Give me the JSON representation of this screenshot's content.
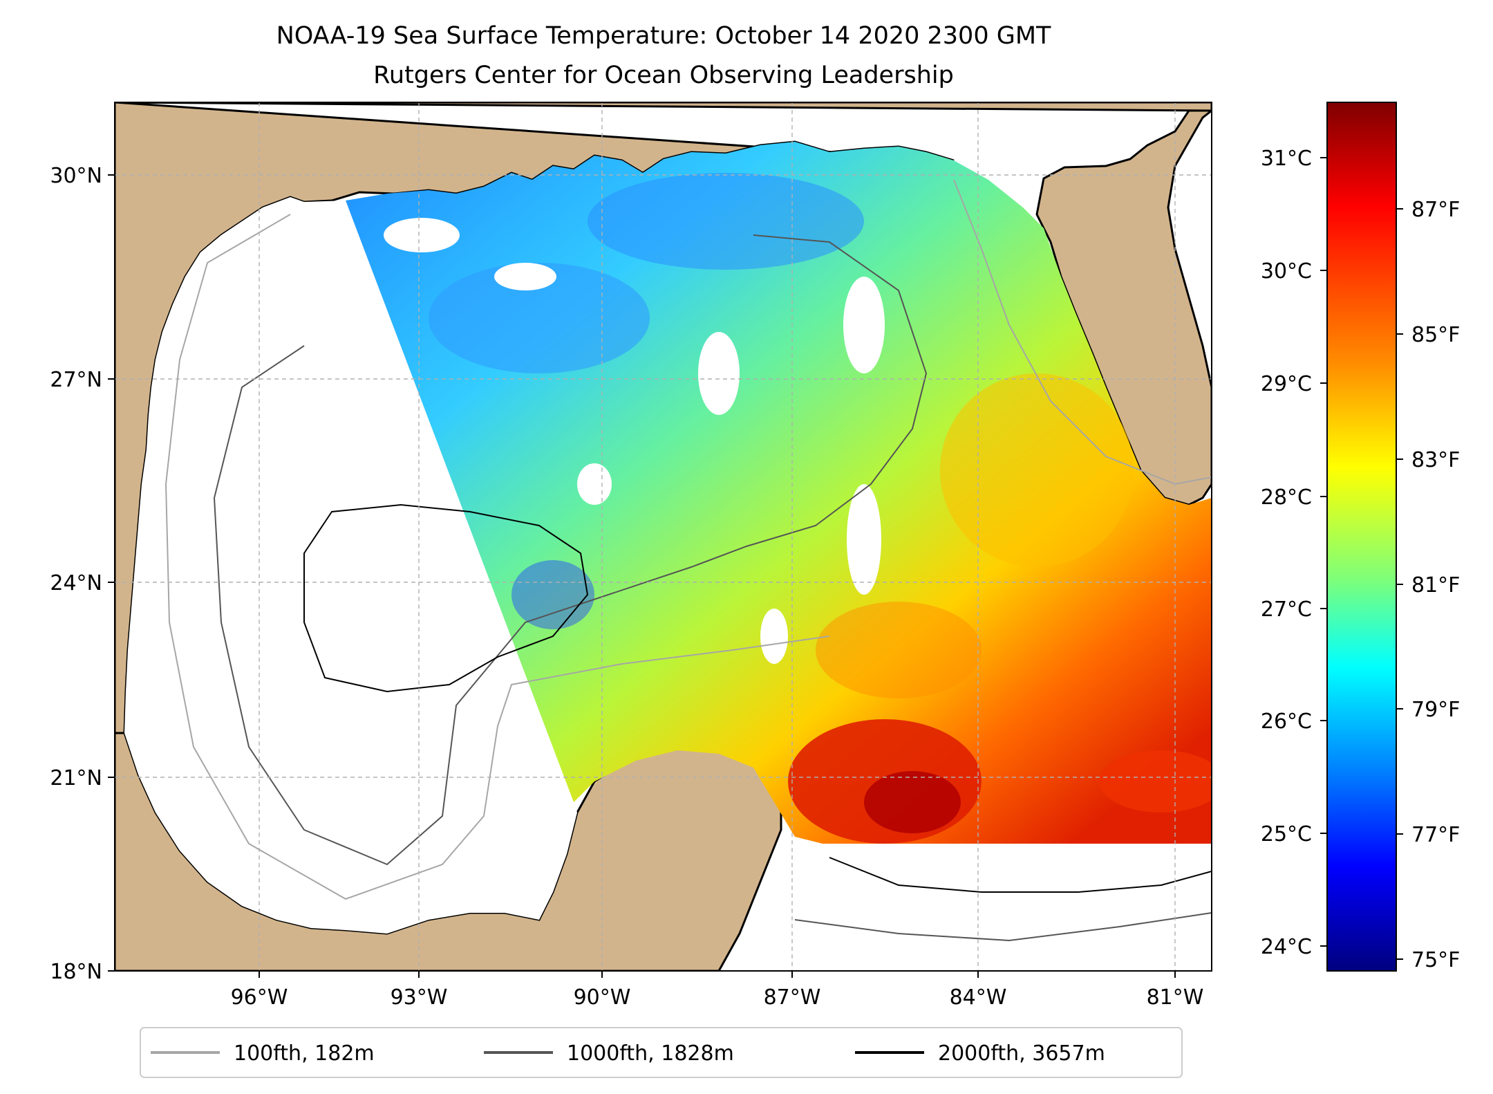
{
  "title": {
    "line1": "NOAA-19 Sea Surface Temperature: October 14 2020 2300 GMT",
    "line2": "Rutgers Center for Ocean Observing Leadership"
  },
  "map": {
    "lat_ticks": [
      "30°N",
      "27°N",
      "24°N",
      "21°N",
      "18°N"
    ],
    "lon_ticks": [
      "96°W",
      "93°W",
      "90°W",
      "87°W",
      "84°W",
      "81°W"
    ],
    "colors": {
      "land": "#d2b48c",
      "ocean_nodata": "#ffffff",
      "lake": "#9db8e0",
      "contour_100": "#a6a6a6",
      "contour_1000": "#555555",
      "contour_2000": "#000000",
      "grid": "#b0b0b0"
    }
  },
  "colorbar": {
    "celsius_ticks": [
      "31°C",
      "30°C",
      "29°C",
      "28°C",
      "27°C",
      "26°C",
      "25°C",
      "24°C"
    ],
    "fahrenheit_ticks": [
      "87°F",
      "85°F",
      "83°F",
      "81°F",
      "79°F",
      "77°F",
      "75°F"
    ],
    "colormap": "jet"
  },
  "legend": {
    "items": [
      {
        "label": "100fth, 182m",
        "color": "#a6a6a6"
      },
      {
        "label": "1000fth, 1828m",
        "color": "#555555"
      },
      {
        "label": "2000fth, 3657m",
        "color": "#000000"
      }
    ]
  }
}
